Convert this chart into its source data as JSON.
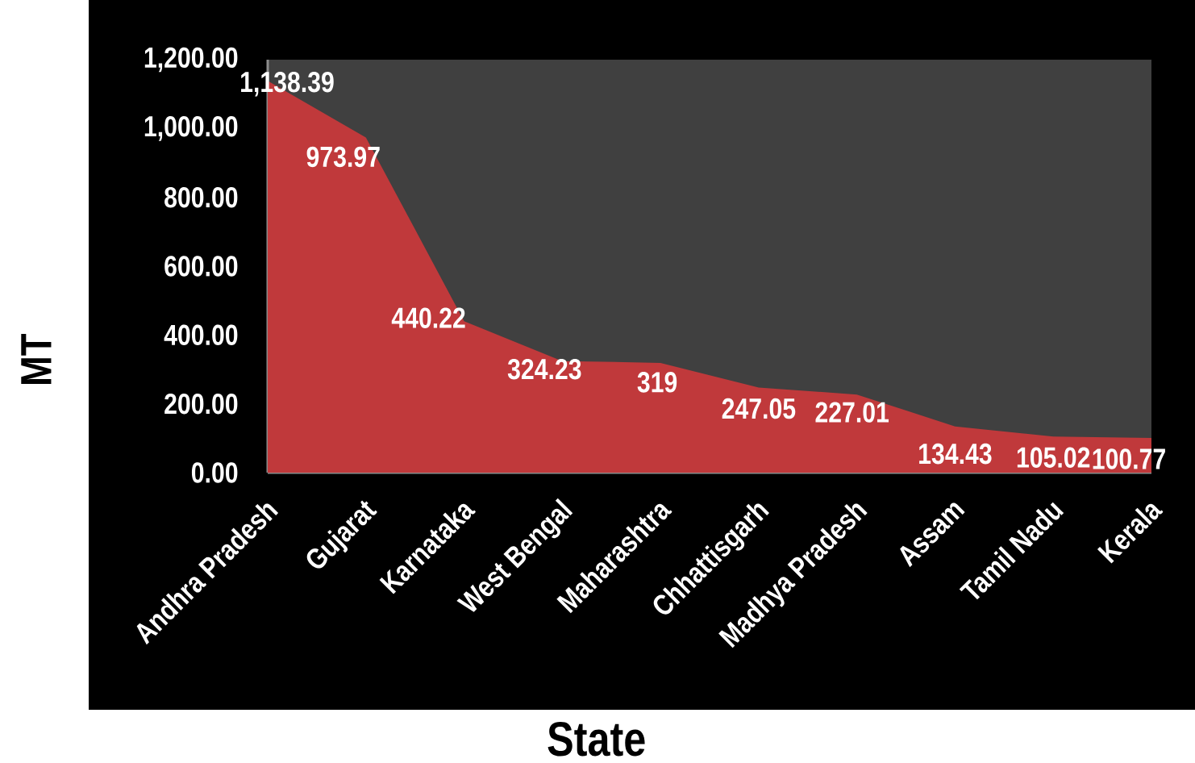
{
  "chart_data": {
    "type": "area",
    "xlabel": "State",
    "ylabel": "MT",
    "categories": [
      "Andhra Pradesh",
      "Gujarat",
      "Karnataka",
      "West Bengal",
      "Maharashtra",
      "Chhattisgarh",
      "Madhya Pradesh",
      "Assam",
      "Tamil Nadu",
      "Kerala"
    ],
    "values": [
      1138.39,
      973.97,
      440.22,
      324.23,
      319,
      247.05,
      227.01,
      134.43,
      105.02,
      100.77
    ],
    "value_labels": [
      "1,138.39",
      "973.97",
      "440.22",
      "324.23",
      "319",
      "247.05",
      "227.01",
      "134.43",
      "105.02",
      "100.77"
    ],
    "color": "#c0393b",
    "ylim": [
      0,
      1200
    ],
    "yticks": [
      {
        "value": 0,
        "label": "0.00"
      },
      {
        "value": 200,
        "label": "200.00"
      },
      {
        "value": 400,
        "label": "400.00"
      },
      {
        "value": 600,
        "label": "600.00"
      },
      {
        "value": 800,
        "label": "800.00"
      },
      {
        "value": 1000,
        "label": "1,000.00"
      },
      {
        "value": 1200,
        "label": "1,200.00"
      }
    ]
  }
}
